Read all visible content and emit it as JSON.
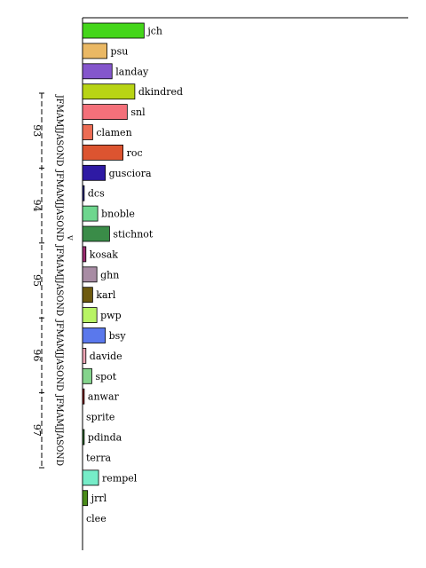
{
  "chart_data": {
    "type": "bar",
    "orientation": "horizontal",
    "categories": [
      "jch",
      "psu",
      "landay",
      "dkindred",
      "snl",
      "clamen",
      "roc",
      "gusciora",
      "dcs",
      "bnoble",
      "stichnot",
      "kosak",
      "ghn",
      "karl",
      "pwp",
      "bsy",
      "davide",
      "spot",
      "anwar",
      "sprite",
      "pdinda",
      "terra",
      "rempel",
      "jrrl",
      "clee"
    ],
    "values": [
      73,
      29,
      35,
      62,
      53,
      12,
      48,
      27,
      2,
      18,
      32,
      4,
      17,
      12,
      17,
      27,
      4,
      11,
      2,
      0,
      2,
      0,
      19,
      6,
      0
    ],
    "colors": [
      "#44d61a",
      "#eab864",
      "#8456cc",
      "#b8d414",
      "#f4707a",
      "#ec6c54",
      "#dc5430",
      "#2e1aa4",
      "#2a2a8c",
      "#6ed68e",
      "#3a8c48",
      "#9a2c70",
      "#a88ca4",
      "#6e5a10",
      "#b8f464",
      "#5a78ec",
      "#eca4b4",
      "#84d48c",
      "#8c1414",
      "#ffffff",
      "#2a6e2a",
      "#ffffff",
      "#76ecc8",
      "#4a8c1a",
      "#ffffff"
    ],
    "xlim": [
      0,
      200
    ],
    "vertical_axis": {
      "label": "v",
      "months": "JFMAMJJASOND",
      "years": [
        "93",
        "94",
        "95",
        "96",
        "97"
      ]
    }
  }
}
